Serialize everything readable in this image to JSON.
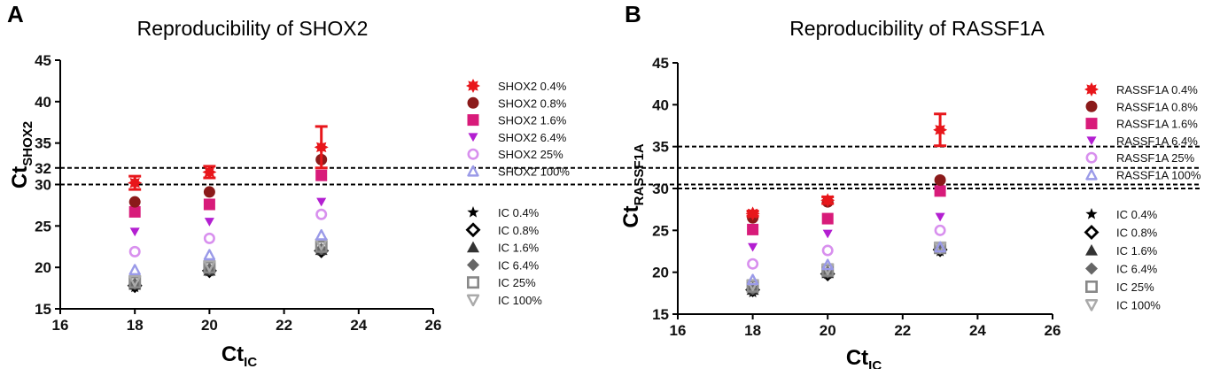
{
  "chart_data": [
    {
      "type": "scatter",
      "panel_letter": "A",
      "title": "Reproducibility of SHOX2",
      "xlabel": {
        "main": "Ct",
        "sub": "IC"
      },
      "ylabel": {
        "main": "Ct",
        "sub": "SHOX2"
      },
      "xlim": [
        16,
        26
      ],
      "ylim": [
        15,
        45
      ],
      "xticks": [
        16,
        18,
        20,
        22,
        24,
        26
      ],
      "yticks": [
        15,
        20,
        25,
        30,
        32,
        35,
        40,
        45
      ],
      "reference_lines": [
        30,
        32
      ],
      "x": [
        18,
        20,
        23
      ],
      "target_series": [
        {
          "name": "SHOX2 0.4%",
          "marker": "asterisk",
          "color": "#e8161b",
          "values": [
            30.2,
            31.5,
            34.5
          ],
          "errors": [
            0.8,
            0.7,
            2.5
          ]
        },
        {
          "name": "SHOX2 0.8%",
          "marker": "circle",
          "color": "#8b1a1a",
          "values": [
            27.9,
            29.1,
            33.0
          ]
        },
        {
          "name": "SHOX2 1.6%",
          "marker": "square",
          "color": "#d81b7a",
          "values": [
            26.7,
            27.6,
            31.1
          ]
        },
        {
          "name": "SHOX2 6.4%",
          "marker": "triangle-down",
          "color": "#b31fd1",
          "values": [
            24.3,
            25.5,
            27.9
          ]
        },
        {
          "name": "SHOX2 25%",
          "marker": "open-circle",
          "color": "#d890ee",
          "values": [
            21.9,
            23.5,
            26.4
          ]
        },
        {
          "name": "SHOX2 100%",
          "marker": "open-triangle",
          "color": "#9a9ae8",
          "values": [
            19.7,
            21.5,
            23.9
          ]
        }
      ],
      "ic_series": [
        {
          "name": "IC 0.4%",
          "marker": "star",
          "color": "#000000",
          "values": [
            17.6,
            19.5,
            22.0
          ]
        },
        {
          "name": "IC 0.8%",
          "marker": "open-diamond",
          "color": "#000000",
          "values": [
            17.8,
            19.6,
            22.0
          ]
        },
        {
          "name": "IC 1.6%",
          "marker": "triangle",
          "color": "#333333",
          "values": [
            17.9,
            19.6,
            22.1
          ]
        },
        {
          "name": "IC 6.4%",
          "marker": "diamond",
          "color": "#666666",
          "values": [
            18.0,
            19.8,
            22.2
          ]
        },
        {
          "name": "IC 25%",
          "marker": "open-square",
          "color": "#888888",
          "values": [
            18.2,
            20.0,
            22.5
          ]
        },
        {
          "name": "IC 100%",
          "marker": "open-triangle-down",
          "color": "#aaaaaa",
          "values": [
            18.4,
            20.2,
            22.8
          ]
        }
      ]
    },
    {
      "type": "scatter",
      "panel_letter": "B",
      "title": "Reproducibility of RASSF1A",
      "xlabel": {
        "main": "Ct",
        "sub": "IC"
      },
      "ylabel": {
        "main": "Ct",
        "sub": "RASSF1A"
      },
      "xlim": [
        16,
        26
      ],
      "ylim": [
        15,
        45
      ],
      "xticks": [
        16,
        18,
        20,
        22,
        24,
        26
      ],
      "yticks": [
        15,
        20,
        25,
        30,
        35,
        40,
        45
      ],
      "reference_lines": [
        30,
        35
      ],
      "x": [
        18,
        20,
        23
      ],
      "target_series": [
        {
          "name": "RASSF1A 0.4%",
          "marker": "asterisk",
          "color": "#e8161b",
          "values": [
            27.0,
            28.6,
            37.0
          ],
          "errors": [
            0.3,
            0.4,
            1.9
          ]
        },
        {
          "name": "RASSF1A 0.8%",
          "marker": "circle",
          "color": "#8b1a1a",
          "values": [
            26.5,
            28.4,
            31.0
          ]
        },
        {
          "name": "RASSF1A 1.6%",
          "marker": "square",
          "color": "#d81b7a",
          "values": [
            25.1,
            26.4,
            29.7
          ]
        },
        {
          "name": "RASSF1A 6.4%",
          "marker": "triangle-down",
          "color": "#b31fd1",
          "values": [
            23.0,
            24.6,
            26.6
          ]
        },
        {
          "name": "RASSF1A 25%",
          "marker": "open-circle",
          "color": "#d890ee",
          "values": [
            21.0,
            22.6,
            25.0
          ]
        },
        {
          "name": "RASSF1A 100%",
          "marker": "open-triangle",
          "color": "#9a9ae8",
          "values": [
            19.1,
            20.9,
            23.0
          ]
        }
      ],
      "ic_series": [
        {
          "name": "IC 0.4%",
          "marker": "star",
          "color": "#000000",
          "values": [
            17.6,
            19.8,
            22.5
          ]
        },
        {
          "name": "IC 0.8%",
          "marker": "open-diamond",
          "color": "#000000",
          "values": [
            17.9,
            19.8,
            22.7
          ]
        },
        {
          "name": "IC 1.6%",
          "marker": "triangle",
          "color": "#333333",
          "values": [
            17.9,
            19.9,
            22.8
          ]
        },
        {
          "name": "IC 6.4%",
          "marker": "diamond",
          "color": "#666666",
          "values": [
            18.0,
            20.0,
            22.8
          ]
        },
        {
          "name": "IC 25%",
          "marker": "open-square",
          "color": "#888888",
          "values": [
            18.3,
            20.2,
            22.9
          ]
        },
        {
          "name": "IC 100%",
          "marker": "open-triangle-down",
          "color": "#aaaaaa",
          "values": [
            18.5,
            20.4,
            23.0
          ]
        }
      ]
    }
  ]
}
